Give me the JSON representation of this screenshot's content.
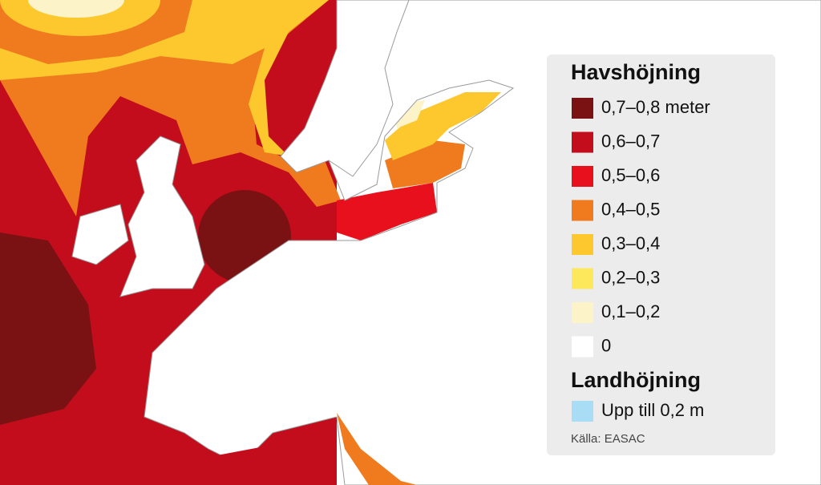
{
  "legend": {
    "title": "Havshöjning",
    "items": [
      {
        "label": "0,7–0,8 meter",
        "color": "#7a1213"
      },
      {
        "label": "0,6–0,7",
        "color": "#c40d1c"
      },
      {
        "label": "0,5–0,6",
        "color": "#e8101c"
      },
      {
        "label": "0,4–0,5",
        "color": "#f07a1e"
      },
      {
        "label": "0,3–0,4",
        "color": "#fcc82e"
      },
      {
        "label": "0,2–0,3",
        "color": "#fde85c"
      },
      {
        "label": "0,1–0,2",
        "color": "#fdf3c9"
      },
      {
        "label": "0",
        "color": "#ffffff"
      }
    ],
    "land_title": "Landhöjning",
    "land_items": [
      {
        "label": "Upp till 0,2 m",
        "color": "#a9dcf5"
      }
    ],
    "source": "Källa: EASAC"
  }
}
